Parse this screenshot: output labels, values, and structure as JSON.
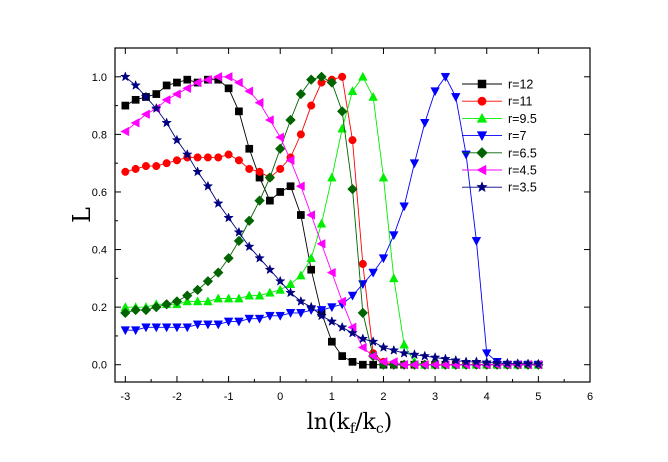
{
  "chart_data": {
    "type": "line",
    "xlabel": "ln(k_f/k_c)",
    "xlabel_main": "ln(k",
    "xlabel_sub1": "f",
    "xlabel_mid": "/k",
    "xlabel_sub2": "c",
    "xlabel_end": ")",
    "ylabel": "L",
    "xlim": [
      -3.2,
      6
    ],
    "ylim": [
      -0.06,
      1.1
    ],
    "x_ticks": [
      -3,
      -2,
      -1,
      0,
      1,
      2,
      3,
      4,
      5,
      6
    ],
    "y_ticks": [
      0.0,
      0.2,
      0.4,
      0.6,
      0.8,
      1.0
    ],
    "y_tick_labels": [
      "0.0",
      "0.2",
      "0.4",
      "0.6",
      "0.8",
      "1.0"
    ],
    "grid": false,
    "legend_position": "top-right",
    "series": [
      {
        "name": "r=12",
        "color": "#000000",
        "marker": "square",
        "x": [
          -3.0,
          -2.8,
          -2.6,
          -2.4,
          -2.2,
          -2.0,
          -1.8,
          -1.6,
          -1.4,
          -1.2,
          -1.0,
          -0.8,
          -0.6,
          -0.4,
          -0.2,
          0.0,
          0.2,
          0.4,
          0.6,
          0.8,
          1.0,
          1.2,
          1.4,
          1.6,
          1.8,
          2.0,
          2.2,
          2.4,
          2.6,
          2.8,
          3.0,
          3.2,
          3.4,
          3.6,
          3.8,
          4.0,
          4.2,
          4.4,
          4.6,
          4.8,
          5.0
        ],
        "y": [
          0.9,
          0.92,
          0.93,
          0.94,
          0.97,
          0.98,
          0.99,
          0.98,
          0.99,
          0.99,
          0.96,
          0.88,
          0.75,
          0.65,
          0.57,
          0.6,
          0.62,
          0.52,
          0.33,
          0.18,
          0.08,
          0.03,
          0.01,
          0.0,
          0.0,
          0.0,
          0.0,
          0.0,
          0.0,
          0.0,
          0.0,
          0.0,
          0.0,
          0.0,
          0.0,
          0.0,
          0.0,
          0.0,
          0.0,
          0.0,
          0.0
        ]
      },
      {
        "name": "r=11",
        "color": "#ff0000",
        "marker": "circle",
        "x": [
          -3.0,
          -2.8,
          -2.6,
          -2.4,
          -2.2,
          -2.0,
          -1.8,
          -1.6,
          -1.4,
          -1.2,
          -1.0,
          -0.8,
          -0.6,
          -0.4,
          -0.2,
          0.0,
          0.2,
          0.4,
          0.6,
          0.8,
          1.0,
          1.2,
          1.4,
          1.6,
          1.8,
          2.0,
          2.2,
          2.4,
          2.6,
          2.8,
          3.0,
          3.2,
          3.4,
          3.6,
          3.8,
          4.0,
          4.2,
          4.4,
          4.6,
          4.8,
          5.0
        ],
        "y": [
          0.67,
          0.68,
          0.69,
          0.69,
          0.7,
          0.71,
          0.72,
          0.72,
          0.72,
          0.72,
          0.73,
          0.71,
          0.68,
          0.67,
          0.65,
          0.68,
          0.72,
          0.8,
          0.9,
          0.98,
          0.99,
          1.0,
          0.78,
          0.35,
          0.04,
          0.01,
          0.0,
          0.0,
          0.0,
          0.0,
          0.0,
          0.0,
          0.0,
          0.0,
          0.0,
          0.0,
          0.0,
          0.0,
          0.0,
          0.0,
          0.0
        ]
      },
      {
        "name": "r=9.5",
        "color": "#00ee00",
        "marker": "triangle-up",
        "x": [
          -3.0,
          -2.8,
          -2.6,
          -2.4,
          -2.2,
          -2.0,
          -1.8,
          -1.6,
          -1.4,
          -1.2,
          -1.0,
          -0.8,
          -0.6,
          -0.4,
          -0.2,
          0.0,
          0.2,
          0.4,
          0.6,
          0.8,
          1.0,
          1.2,
          1.4,
          1.6,
          1.8,
          2.0,
          2.2,
          2.4,
          2.6,
          2.8,
          3.0,
          3.2,
          3.4,
          3.6,
          3.8,
          4.0,
          4.2,
          4.4,
          4.6,
          4.8,
          5.0
        ],
        "y": [
          0.2,
          0.2,
          0.2,
          0.21,
          0.21,
          0.21,
          0.22,
          0.22,
          0.22,
          0.23,
          0.23,
          0.23,
          0.24,
          0.24,
          0.25,
          0.26,
          0.28,
          0.31,
          0.37,
          0.49,
          0.65,
          0.82,
          0.95,
          1.0,
          0.93,
          0.65,
          0.3,
          0.07,
          0.01,
          0.0,
          0.0,
          0.0,
          0.0,
          0.0,
          0.0,
          0.0,
          0.0,
          0.0,
          0.0,
          0.0,
          0.0
        ]
      },
      {
        "name": "r=7",
        "color": "#0000ff",
        "marker": "triangle-down",
        "x": [
          -3.0,
          -2.8,
          -2.6,
          -2.4,
          -2.2,
          -2.0,
          -1.8,
          -1.6,
          -1.4,
          -1.2,
          -1.0,
          -0.8,
          -0.6,
          -0.4,
          -0.2,
          0.0,
          0.2,
          0.4,
          0.6,
          0.8,
          1.0,
          1.2,
          1.4,
          1.6,
          1.8,
          2.0,
          2.2,
          2.4,
          2.6,
          2.8,
          3.0,
          3.2,
          3.4,
          3.6,
          3.8,
          4.0,
          4.2,
          4.4,
          4.6,
          4.8,
          5.0
        ],
        "y": [
          0.12,
          0.12,
          0.13,
          0.13,
          0.13,
          0.13,
          0.13,
          0.14,
          0.14,
          0.14,
          0.15,
          0.15,
          0.16,
          0.16,
          0.17,
          0.17,
          0.18,
          0.18,
          0.19,
          0.19,
          0.2,
          0.21,
          0.24,
          0.28,
          0.32,
          0.37,
          0.45,
          0.55,
          0.7,
          0.84,
          0.95,
          1.0,
          0.93,
          0.73,
          0.43,
          0.04,
          0.01,
          0.0,
          0.0,
          0.0,
          0.0
        ]
      },
      {
        "name": "r=6.5",
        "color": "#006400",
        "marker": "diamond",
        "x": [
          -3.0,
          -2.8,
          -2.6,
          -2.4,
          -2.2,
          -2.0,
          -1.8,
          -1.6,
          -1.4,
          -1.2,
          -1.0,
          -0.8,
          -0.6,
          -0.4,
          -0.2,
          0.0,
          0.2,
          0.4,
          0.6,
          0.8,
          1.0,
          1.2,
          1.4,
          1.6,
          1.8,
          2.0,
          2.2,
          2.4,
          2.6,
          2.8,
          3.0,
          3.2,
          3.4,
          3.6,
          3.8,
          4.0,
          4.2,
          4.4,
          4.6,
          4.8,
          5.0
        ],
        "y": [
          0.18,
          0.19,
          0.19,
          0.2,
          0.21,
          0.22,
          0.24,
          0.26,
          0.29,
          0.32,
          0.37,
          0.43,
          0.5,
          0.57,
          0.65,
          0.75,
          0.85,
          0.94,
          0.99,
          1.0,
          0.98,
          0.88,
          0.61,
          0.18,
          0.03,
          0.0,
          0.0,
          0.0,
          0.0,
          0.0,
          0.0,
          0.0,
          0.0,
          0.0,
          0.0,
          0.0,
          0.0,
          0.0,
          0.0,
          0.0,
          0.0
        ]
      },
      {
        "name": "r=4.5",
        "color": "#ff00ff",
        "marker": "triangle-left",
        "x": [
          -3.0,
          -2.8,
          -2.6,
          -2.4,
          -2.2,
          -2.0,
          -1.8,
          -1.6,
          -1.4,
          -1.2,
          -1.0,
          -0.8,
          -0.6,
          -0.4,
          -0.2,
          0.0,
          0.2,
          0.4,
          0.6,
          0.8,
          1.0,
          1.2,
          1.4,
          1.6,
          1.8,
          2.0,
          2.2,
          2.4,
          2.6,
          2.8,
          3.0,
          3.2,
          3.4,
          3.6,
          3.8,
          4.0,
          4.2,
          4.4,
          4.6,
          4.8,
          5.0
        ],
        "y": [
          0.81,
          0.84,
          0.87,
          0.89,
          0.92,
          0.94,
          0.96,
          0.98,
          0.99,
          1.0,
          1.0,
          0.98,
          0.95,
          0.91,
          0.85,
          0.79,
          0.71,
          0.62,
          0.52,
          0.42,
          0.32,
          0.22,
          0.13,
          0.06,
          0.03,
          0.01,
          0.01,
          0.0,
          0.0,
          0.0,
          0.0,
          0.0,
          0.0,
          0.0,
          0.0,
          0.0,
          0.0,
          0.0,
          0.0,
          0.0,
          0.0
        ]
      },
      {
        "name": "r=3.5",
        "color": "#000080",
        "marker": "star",
        "x": [
          -3.0,
          -2.8,
          -2.6,
          -2.4,
          -2.2,
          -2.0,
          -1.8,
          -1.6,
          -1.4,
          -1.2,
          -1.0,
          -0.8,
          -0.6,
          -0.4,
          -0.2,
          0.0,
          0.2,
          0.4,
          0.6,
          0.8,
          1.0,
          1.2,
          1.4,
          1.6,
          1.8,
          2.0,
          2.2,
          2.4,
          2.6,
          2.8,
          3.0,
          3.2,
          3.4,
          3.6,
          3.8,
          4.0,
          4.2,
          4.4,
          4.6,
          4.8,
          5.0
        ],
        "y": [
          1.0,
          0.97,
          0.93,
          0.89,
          0.84,
          0.78,
          0.73,
          0.67,
          0.62,
          0.56,
          0.51,
          0.46,
          0.41,
          0.37,
          0.33,
          0.29,
          0.25,
          0.22,
          0.2,
          0.17,
          0.15,
          0.13,
          0.11,
          0.09,
          0.08,
          0.06,
          0.05,
          0.04,
          0.035,
          0.03,
          0.025,
          0.02,
          0.015,
          0.01,
          0.01,
          0.008,
          0.006,
          0.005,
          0.004,
          0.003,
          0.002
        ]
      }
    ]
  }
}
